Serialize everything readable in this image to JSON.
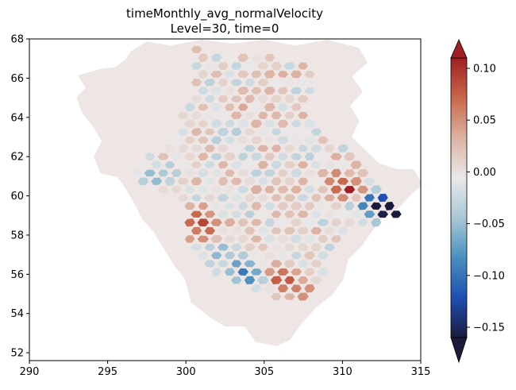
{
  "chart_data": {
    "type": "heatmap",
    "title": "timeMonthly_avg_normalVelocity",
    "subtitle": "Level=30, time=0",
    "xlim": [
      290,
      315
    ],
    "ylim": [
      51.6,
      68
    ],
    "x_ticks": [
      "290",
      "295",
      "300",
      "305",
      "310",
      "315"
    ],
    "y_ticks": [
      "52",
      "54",
      "56",
      "58",
      "60",
      "62",
      "64",
      "66",
      "68"
    ],
    "colorbar": {
      "range": [
        -0.16,
        0.11
      ],
      "ticks": [
        "0.10",
        "0.05",
        "0.00",
        "−0.05",
        "−0.10",
        "−0.15"
      ],
      "colormap": [
        "#1a1a3a",
        "#1f4fb3",
        "#4a8fbf",
        "#a9c8d6",
        "#e9e9e9",
        "#dcb2a2",
        "#c8674b",
        "#a01f24"
      ],
      "extend": "both"
    },
    "background_color": "#ede6e4",
    "note": "mesh of hexagonal cells; velocity mostly near 0 with stronger values along eastern and southern edges",
    "hotspots": [
      {
        "lon": 313.3,
        "lat": 59.3,
        "value": -0.16
      },
      {
        "lon": 312.5,
        "lat": 59.4,
        "value": -0.12
      },
      {
        "lon": 311.8,
        "lat": 59.9,
        "value": -0.1
      },
      {
        "lon": 311.0,
        "lat": 60.1,
        "value": 0.1
      },
      {
        "lon": 310.3,
        "lat": 60.2,
        "value": 0.09
      },
      {
        "lon": 310.8,
        "lat": 59.7,
        "value": -0.08
      },
      {
        "lon": 305.6,
        "lat": 56.0,
        "value": 0.08
      },
      {
        "lon": 306.5,
        "lat": 55.5,
        "value": 0.07
      },
      {
        "lon": 304.5,
        "lat": 55.8,
        "value": -0.09
      },
      {
        "lon": 303.5,
        "lat": 56.3,
        "value": -0.08
      },
      {
        "lon": 300.8,
        "lat": 58.8,
        "value": 0.09
      },
      {
        "lon": 301.3,
        "lat": 58.0,
        "value": 0.07
      },
      {
        "lon": 302.0,
        "lat": 57.2,
        "value": -0.07
      },
      {
        "lon": 308.0,
        "lat": 55.0,
        "value": 0.06
      },
      {
        "lon": 309.5,
        "lat": 61.0,
        "value": 0.06
      },
      {
        "lon": 298.0,
        "lat": 61.0,
        "value": -0.06
      },
      {
        "lon": 302.8,
        "lat": 63.3,
        "value": -0.04
      },
      {
        "lon": 303.5,
        "lat": 64.5,
        "value": 0.04
      }
    ]
  }
}
